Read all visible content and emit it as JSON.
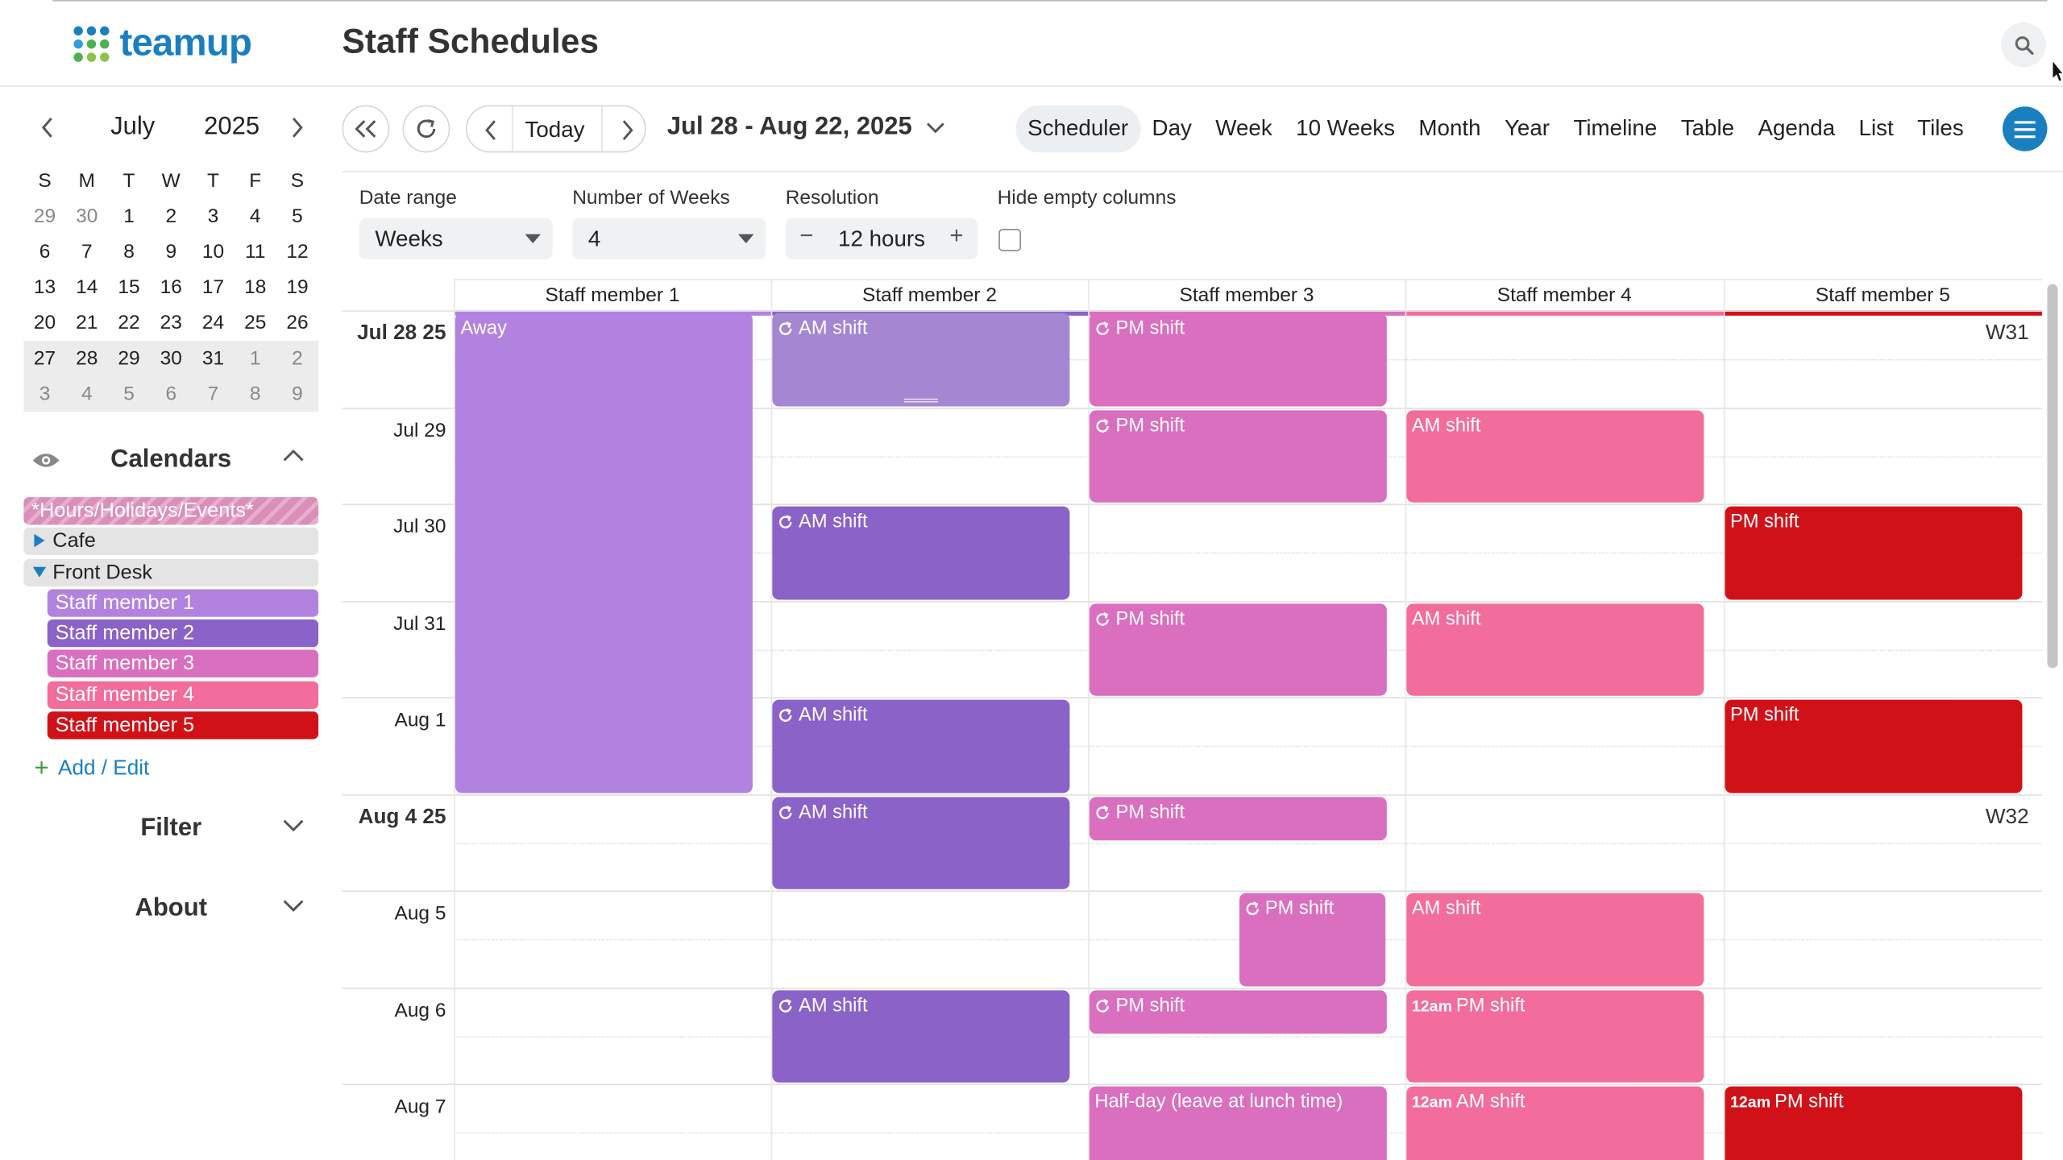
{
  "app": {
    "logo_text": "teamup",
    "title": "Staff Schedules"
  },
  "colors": {
    "brand": "#1a7fc1",
    "staff1": "#b282e0",
    "staff2": "#8a62c8",
    "staff3": "#d96fbe",
    "staff4": "#f26d9b",
    "staff5": "#d01218",
    "away": "#b282e0",
    "staff2_light": "#a586d2"
  },
  "mini_calendar": {
    "month": "July",
    "year": "2025",
    "weekdays": [
      "S",
      "M",
      "T",
      "W",
      "T",
      "F",
      "S"
    ],
    "weeks": [
      [
        "29",
        "30",
        "1",
        "2",
        "3",
        "4",
        "5"
      ],
      [
        "6",
        "7",
        "8",
        "9",
        "10",
        "11",
        "12"
      ],
      [
        "13",
        "14",
        "15",
        "16",
        "17",
        "18",
        "19"
      ],
      [
        "20",
        "21",
        "22",
        "23",
        "24",
        "25",
        "26"
      ],
      [
        "27",
        "28",
        "29",
        "30",
        "31",
        "1",
        "2"
      ],
      [
        "3",
        "4",
        "5",
        "6",
        "7",
        "8",
        "9"
      ]
    ],
    "dim_days": [
      [
        0,
        0
      ],
      [
        0,
        1
      ],
      [
        4,
        5
      ],
      [
        4,
        6
      ],
      [
        5,
        0
      ],
      [
        5,
        1
      ],
      [
        5,
        2
      ],
      [
        5,
        3
      ],
      [
        5,
        4
      ],
      [
        5,
        5
      ],
      [
        5,
        6
      ]
    ]
  },
  "calendars": {
    "title": "Calendars",
    "items": [
      {
        "label": "*Hours/Holidays/Events*",
        "type": "holidays"
      },
      {
        "label": "Cafe",
        "type": "folder-closed"
      },
      {
        "label": "Front Desk",
        "type": "folder-open"
      },
      {
        "label": "Staff member 1",
        "type": "sub",
        "color": "#b282e0"
      },
      {
        "label": "Staff member 2",
        "type": "sub",
        "color": "#8a62c8"
      },
      {
        "label": "Staff member 3",
        "type": "sub",
        "color": "#d96fbe"
      },
      {
        "label": "Staff member 4",
        "type": "sub",
        "color": "#f26d9b"
      },
      {
        "label": "Staff member 5",
        "type": "sub",
        "color": "#d01218"
      }
    ],
    "add_edit": "Add / Edit"
  },
  "sections": {
    "filter": "Filter",
    "about": "About"
  },
  "toolbar": {
    "today": "Today",
    "range": "Jul 28 - Aug 22, 2025",
    "views": [
      "Scheduler",
      "Day",
      "Week",
      "10 Weeks",
      "Month",
      "Year",
      "Timeline",
      "Table",
      "Agenda",
      "List",
      "Tiles"
    ],
    "active_view": "Scheduler"
  },
  "controls": {
    "date_range_label": "Date range",
    "date_range_value": "Weeks",
    "weeks_label": "Number of Weeks",
    "weeks_value": "4",
    "resolution_label": "Resolution",
    "resolution_value": "12 hours",
    "hide_empty_label": "Hide empty columns",
    "hide_empty_checked": false
  },
  "grid": {
    "columns": [
      {
        "label": "Staff member 1",
        "color": "#b282e0"
      },
      {
        "label": "Staff member 2",
        "color": "#8a62c8"
      },
      {
        "label": "Staff member 3",
        "color": "#d96fbe"
      },
      {
        "label": "Staff member 4",
        "color": "#f26d9b"
      },
      {
        "label": "Staff member 5",
        "color": "#d01218"
      }
    ],
    "rows": [
      {
        "label": "Jul 28 25",
        "week_start": true,
        "week": "W31"
      },
      {
        "label": "Jul 29"
      },
      {
        "label": "Jul 30"
      },
      {
        "label": "Jul 31"
      },
      {
        "label": "Aug 1"
      },
      {
        "label": "Aug 4 25",
        "week_start": true,
        "week": "W32"
      },
      {
        "label": "Aug 5"
      },
      {
        "label": "Aug 6"
      },
      {
        "label": "Aug 7"
      }
    ],
    "events": [
      {
        "col": 0,
        "row": 0,
        "row_span": 5,
        "half_span": 10,
        "title": "Away",
        "repeat": false,
        "color": "#b282e0",
        "time": ""
      },
      {
        "col": 1,
        "row": 0,
        "half_span": 2,
        "title": "AM shift",
        "repeat": true,
        "color": "#a586d2",
        "time": "",
        "grip": true
      },
      {
        "col": 1,
        "row": 2,
        "half_span": 2,
        "title": "AM shift",
        "repeat": true,
        "color": "#8a62c8",
        "time": ""
      },
      {
        "col": 1,
        "row": 4,
        "half_span": 2,
        "title": "AM shift",
        "repeat": true,
        "color": "#8a62c8",
        "time": ""
      },
      {
        "col": 1,
        "row": 5,
        "half_span": 2,
        "title": "AM shift",
        "repeat": true,
        "color": "#8a62c8",
        "time": ""
      },
      {
        "col": 1,
        "row": 7,
        "half_span": 2,
        "title": "AM shift",
        "repeat": true,
        "color": "#8a62c8",
        "time": ""
      },
      {
        "col": 2,
        "row": 0,
        "half_span": 2,
        "title": "PM shift",
        "repeat": true,
        "color": "#d96fbe",
        "time": ""
      },
      {
        "col": 2,
        "row": 1,
        "half_span": 2,
        "title": "PM shift",
        "repeat": true,
        "color": "#d96fbe",
        "time": ""
      },
      {
        "col": 2,
        "row": 3,
        "half_span": 2,
        "title": "PM shift",
        "repeat": true,
        "color": "#d96fbe",
        "time": ""
      },
      {
        "col": 2,
        "row": 5,
        "half_span": 1,
        "title": "PM shift",
        "repeat": true,
        "color": "#d96fbe",
        "time": ""
      },
      {
        "col": 2,
        "row": 6,
        "half_span": 2,
        "title": "PM shift",
        "repeat": true,
        "color": "#d96fbe",
        "time": "",
        "inset": 0.5
      },
      {
        "col": 2,
        "row": 7,
        "half_span": 1,
        "title": "PM shift",
        "repeat": true,
        "color": "#d96fbe",
        "time": ""
      },
      {
        "col": 2,
        "row": 8,
        "half_span": 2,
        "title": "Half-day (leave at lunch time)",
        "repeat": false,
        "color": "#d96fbe",
        "time": ""
      },
      {
        "col": 3,
        "row": 1,
        "half_span": 2,
        "title": "AM shift",
        "repeat": false,
        "color": "#f26d9b",
        "time": ""
      },
      {
        "col": 3,
        "row": 3,
        "half_span": 2,
        "title": "AM shift",
        "repeat": false,
        "color": "#f26d9b",
        "time": ""
      },
      {
        "col": 3,
        "row": 6,
        "half_span": 2,
        "title": "AM shift",
        "repeat": false,
        "color": "#f26d9b",
        "time": ""
      },
      {
        "col": 3,
        "row": 7,
        "half_span": 2,
        "title": "PM shift",
        "repeat": false,
        "color": "#f26d9b",
        "time": "12am"
      },
      {
        "col": 3,
        "row": 8,
        "half_span": 2,
        "title": "AM shift",
        "repeat": false,
        "color": "#f26d9b",
        "time": "12am"
      },
      {
        "col": 4,
        "row": 2,
        "half_span": 2,
        "title": "PM shift",
        "repeat": false,
        "color": "#d01218",
        "time": ""
      },
      {
        "col": 4,
        "row": 4,
        "half_span": 2,
        "title": "PM shift",
        "repeat": false,
        "color": "#d01218",
        "time": ""
      },
      {
        "col": 4,
        "row": 8,
        "half_span": 2,
        "title": "PM shift",
        "repeat": false,
        "color": "#d01218",
        "time": "12am"
      }
    ]
  }
}
